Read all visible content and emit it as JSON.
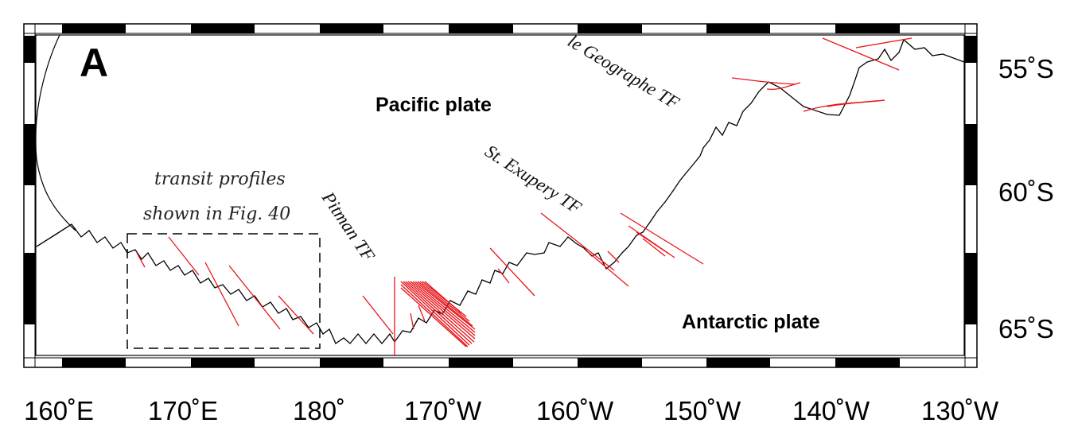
{
  "panel_label": "A",
  "plates": {
    "pacific": "Pacific plate",
    "antarctic": "Antarctic plate"
  },
  "transforms": {
    "le_geographe": "le Geographe TF",
    "st_exupery": "St. Exupery TF",
    "pitman": "Pitman TF"
  },
  "inset_box": {
    "line1": "transit profiles",
    "line2": "shown in Fig. 40"
  },
  "lat_labels": [
    "55˚S",
    "60˚S",
    "65˚S"
  ],
  "lon_labels": [
    "160˚E",
    "170˚E",
    "180˚",
    "170˚W",
    "160˚W",
    "150˚W",
    "140˚W",
    "130˚W"
  ],
  "colors": {
    "ridge": "#000000",
    "profiles": "#e8151b",
    "frame": "#000000"
  }
}
